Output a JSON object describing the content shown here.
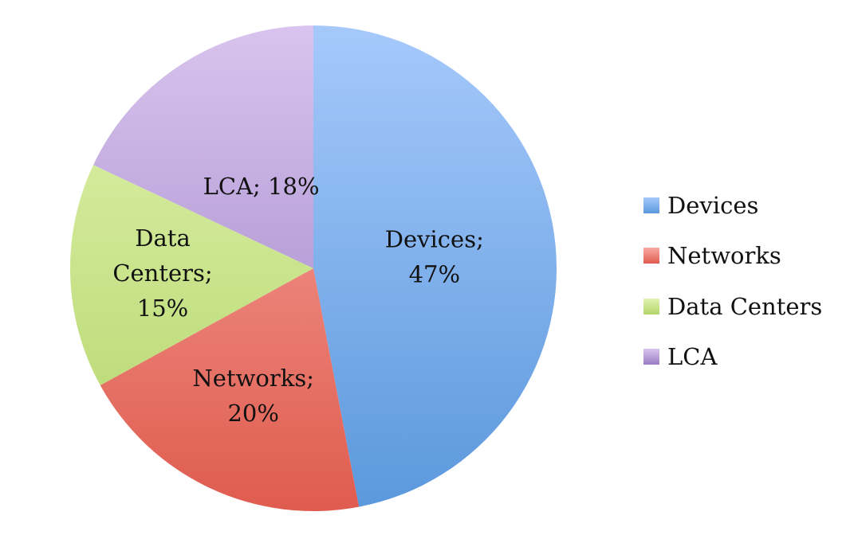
{
  "chart_data": {
    "type": "pie",
    "title": "",
    "legend_position": "right",
    "slices": [
      {
        "label": "Devices",
        "value": 47,
        "value_label": "47%",
        "data_label": [
          "Devices;",
          "47%"
        ],
        "color": "#7fb0ee",
        "color_light": "#a6c9fb",
        "color_dark": "#5a98dc"
      },
      {
        "label": "Networks",
        "value": 20,
        "value_label": "20%",
        "data_label": [
          "Networks;",
          "20%"
        ],
        "color": "#ec8a80",
        "color_light": "#f9aaa3",
        "color_dark": "#df5c4f"
      },
      {
        "label": "Data Centers",
        "value": 15,
        "value_label": "15%",
        "data_label": [
          "Data",
          "Centers;",
          "15%"
        ],
        "color": "#c8e385",
        "color_light": "#e2f3b0",
        "color_dark": "#b2d56a"
      },
      {
        "label": "LCA",
        "value": 18,
        "value_label": "18%",
        "data_label": [
          "LCA; 18%"
        ],
        "color": "#b199d4",
        "color_light": "#d8c4ee",
        "color_dark": "#9a7dc3"
      }
    ]
  }
}
